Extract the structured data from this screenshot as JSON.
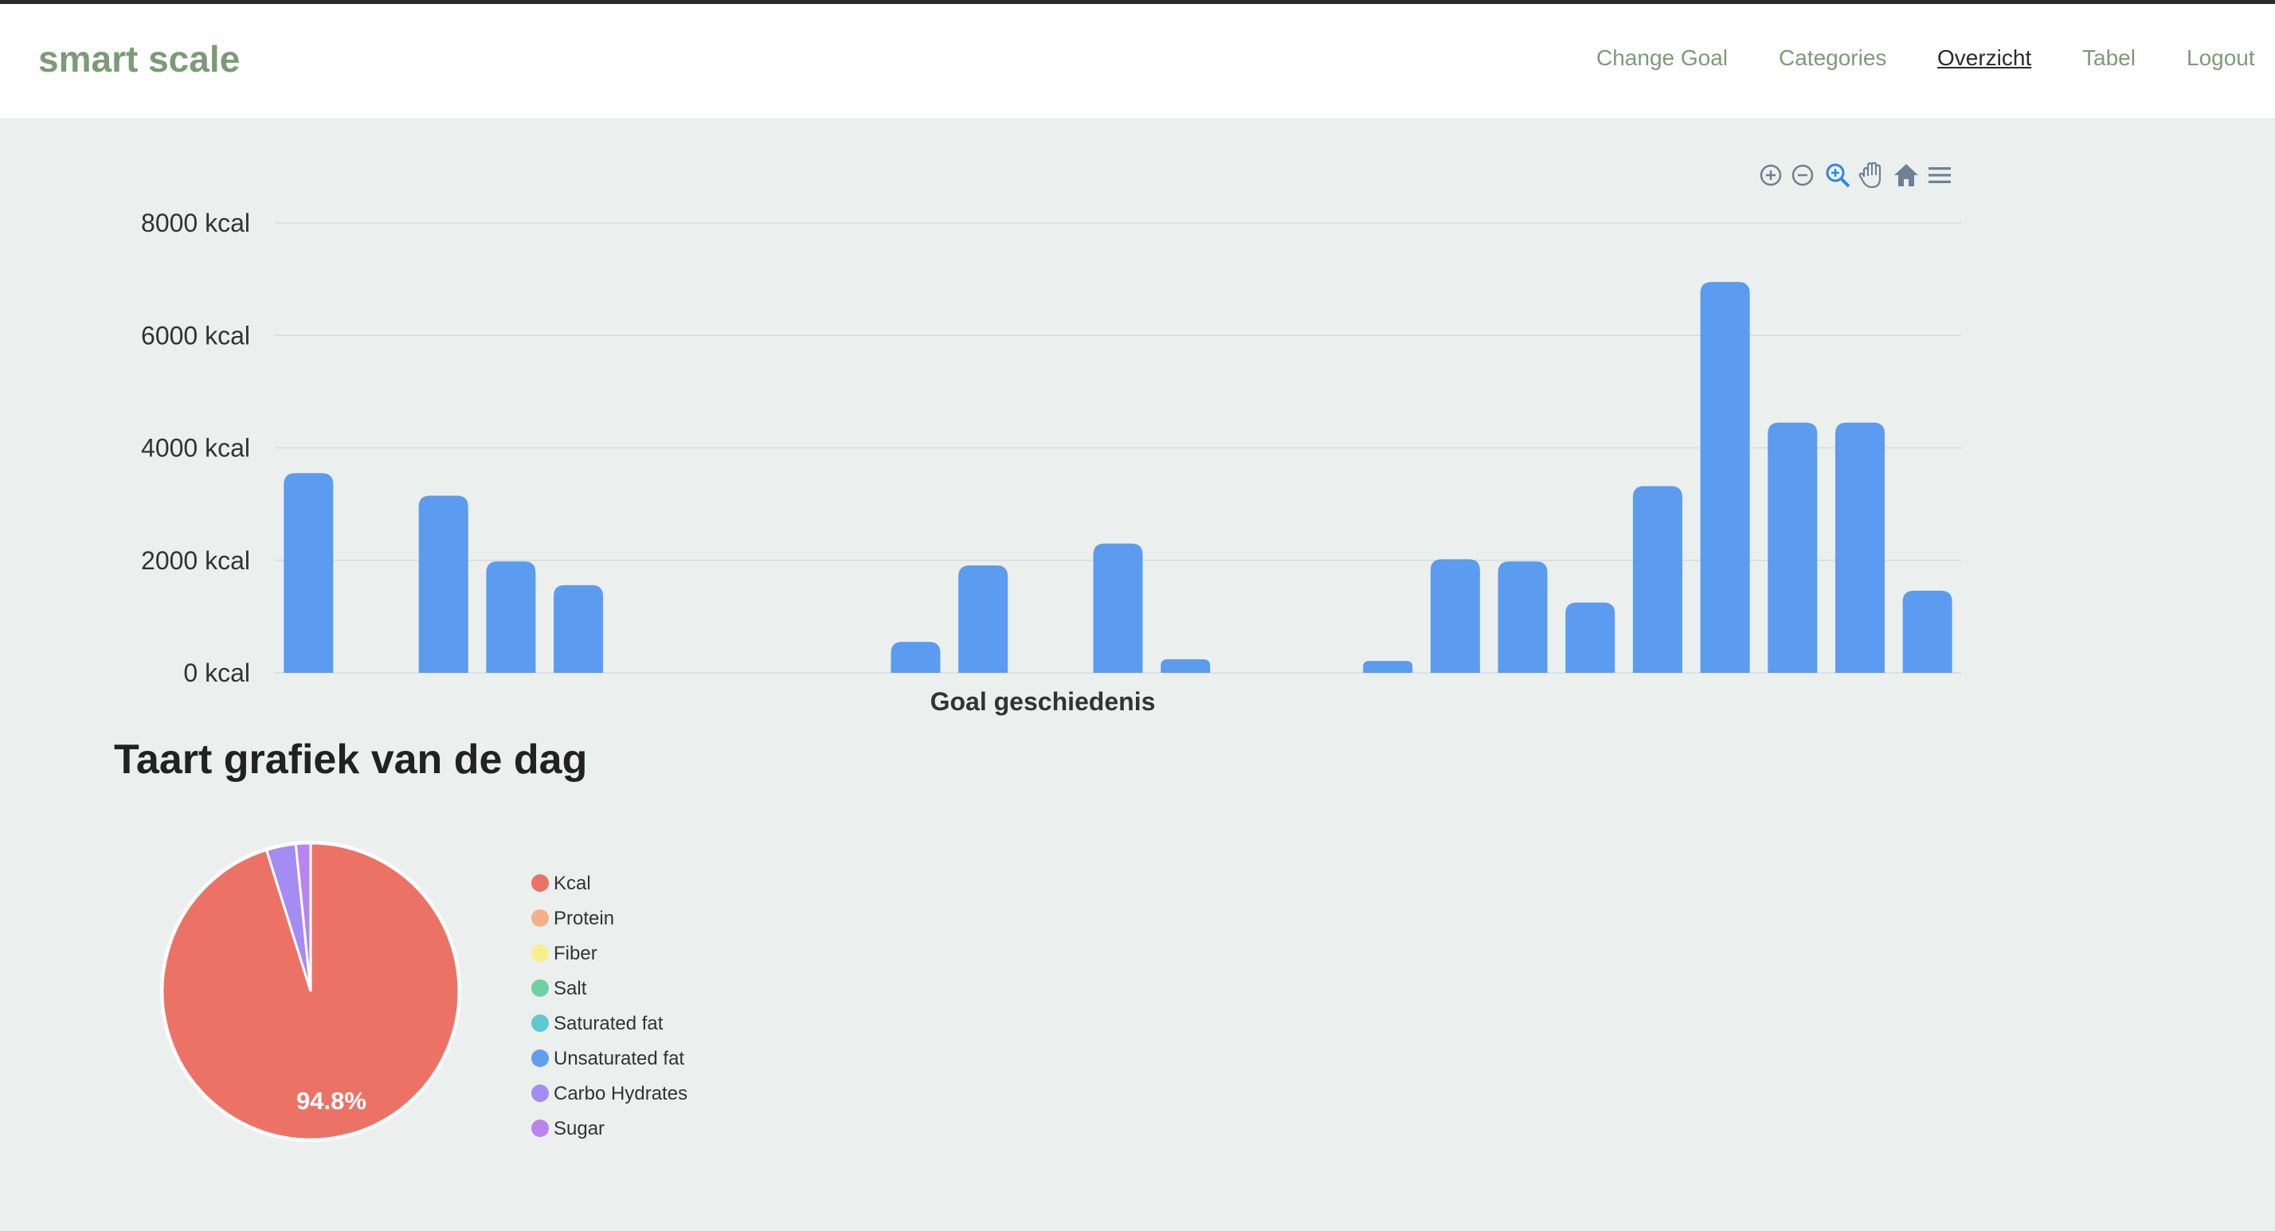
{
  "navbar": {
    "brand": "smart scale",
    "links": [
      {
        "label": "Change Goal",
        "active": false
      },
      {
        "label": "Categories",
        "active": false
      },
      {
        "label": "Overzicht",
        "active": true
      },
      {
        "label": "Tabel",
        "active": false
      },
      {
        "label": "Logout",
        "active": false
      }
    ]
  },
  "toolbar": {
    "icons": [
      "zoom-in-icon",
      "zoom-out-icon",
      "zoom-selection-icon",
      "pan-hand-icon",
      "home-reset-icon",
      "menu-icon"
    ],
    "color": "#6e8192",
    "active_color": "#2f86e0"
  },
  "chart_data": [
    {
      "type": "bar",
      "title": "",
      "xlabel": "Goal geschiedenis",
      "ylabel": "",
      "unit": "kcal",
      "ylim": [
        0,
        8000
      ],
      "yticks": [
        "0 kcal",
        "2000 kcal",
        "4000 kcal",
        "6000 kcal",
        "8000 kcal"
      ],
      "grid": true,
      "bar_color": "#5b9bf0",
      "values": [
        3550,
        0,
        3150,
        1980,
        1560,
        0,
        0,
        0,
        0,
        550,
        1910,
        0,
        2300,
        240,
        0,
        0,
        210,
        2020,
        1980,
        1250,
        3320,
        6950,
        4450,
        4450,
        1460
      ]
    },
    {
      "type": "pie",
      "title": "Taart grafiek van de dag",
      "series": [
        {
          "name": "Kcal",
          "value": 94.8,
          "color": "#ed7266"
        },
        {
          "name": "Protein",
          "value": 0,
          "color": "#f5b088"
        },
        {
          "name": "Fiber",
          "value": 0,
          "color": "#f7ef8c"
        },
        {
          "name": "Salt",
          "value": 0,
          "color": "#6fd1a1"
        },
        {
          "name": "Saturated fat",
          "value": 0,
          "color": "#5fc9d2"
        },
        {
          "name": "Unsaturated fat",
          "value": 0,
          "color": "#5f9ff0"
        },
        {
          "name": "Carbo Hydrates",
          "value": 3.2,
          "color": "#a38cf2"
        },
        {
          "name": "Sugar",
          "value": 1.6,
          "color": "#b983f0"
        }
      ],
      "data_label": "94.8%"
    }
  ]
}
